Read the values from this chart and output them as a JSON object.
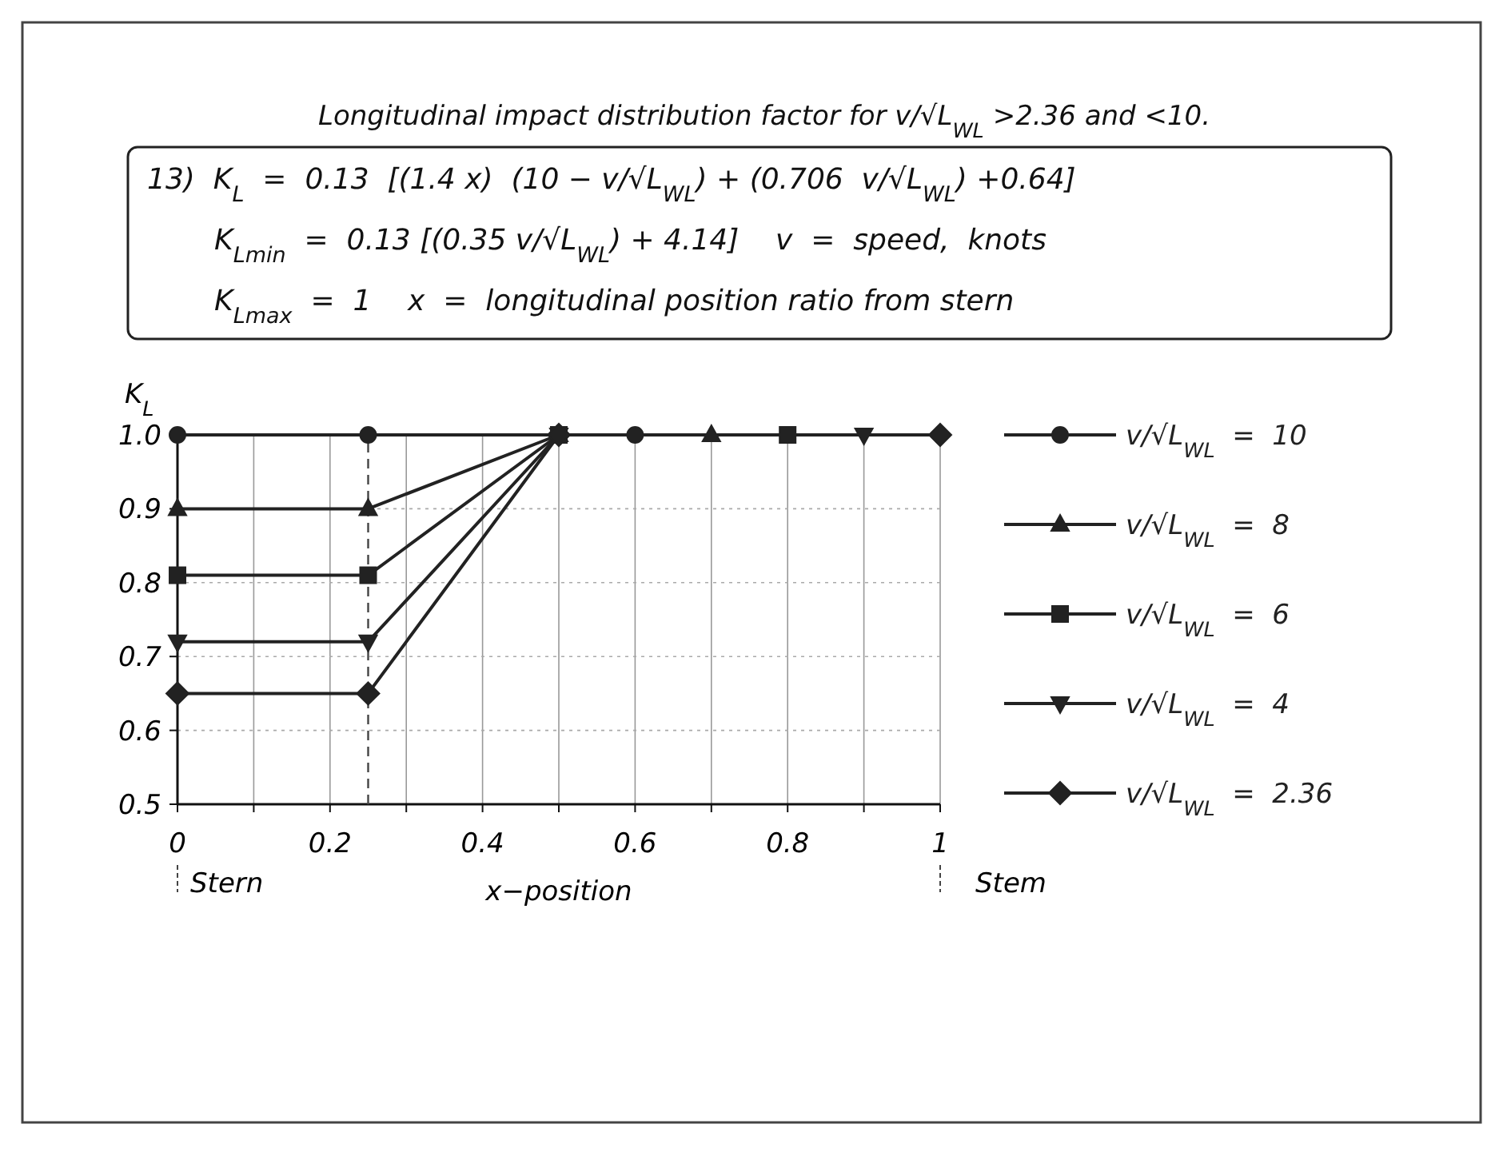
{
  "chart_data": {
    "type": "line",
    "title": "Longitudinal impact distribution factor for v/√L$_{WL}$ >2.36 and <10.",
    "annotations": [
      "13)  K$_{L}$  =  0.13  [(1.4 x)  (10 − v/√L$_{WL}$) + (0.706  v/√L$_{WL}$) +0.64]",
      "K$_{Lmin}$  =  0.13 [(0.35 v/√L$_{WL}$) + 4.14]    v  =  speed,  knots",
      "K$_{Lmax}$  =  1    x  =  longitudinal position ratio from stern",
      "Stern",
      "Stem"
    ],
    "xlabel": "x−position",
    "ylabel": "K$_{L}$",
    "xlim": [
      0,
      1
    ],
    "ylim": [
      0.5,
      1.0
    ],
    "xticks": [
      0,
      {
        "value": 0.1,
        "label": null
      },
      0.2,
      {
        "value": 0.3,
        "label": null
      },
      0.4,
      {
        "value": 0.5,
        "label": null
      },
      0.6,
      {
        "value": 0.7,
        "label": null
      },
      0.8,
      {
        "value": 0.9,
        "label": null
      },
      1
    ],
    "yticks": [
      0.5,
      0.6,
      0.7,
      0.8,
      0.9,
      {
        "value": 1,
        "label": "1.0"
      }
    ],
    "grid": true,
    "legend": "right",
    "line_style": "solid",
    "ref_lines": [
      {
        "axis": "x",
        "value": 0.25,
        "label": null,
        "line_style": "dashed",
        "color": "#444444"
      }
    ],
    "series": [
      {
        "name": "v/√L$_{WL}$  =  10",
        "color": "#222222",
        "marker": "circle",
        "x": [
          0,
          0.25,
          0.5,
          0.6
        ],
        "values": [
          1,
          1,
          1,
          1
        ]
      },
      {
        "name": "v/√L$_{WL}$  =  8",
        "color": "#222222",
        "marker": "triangle",
        "x": [
          0,
          0.25,
          0.5,
          0.7
        ],
        "values": [
          0.9,
          0.9,
          1,
          1
        ]
      },
      {
        "name": "v/√L$_{WL}$  =  6",
        "color": "#222222",
        "marker": "square",
        "x": [
          0,
          0.25,
          0.5,
          0.8
        ],
        "values": [
          0.81,
          0.81,
          1,
          1
        ]
      },
      {
        "name": "v/√L$_{WL}$  =  4",
        "color": "#222222",
        "marker": "triangle-down",
        "x": [
          0,
          0.25,
          0.5,
          0.9
        ],
        "values": [
          0.72,
          0.72,
          1,
          1
        ]
      },
      {
        "name": "v/√L$_{WL}$  =  2.36",
        "color": "#222222",
        "marker": "diamond",
        "x": [
          0,
          0.25,
          0.5,
          1
        ],
        "values": [
          0.65,
          0.65,
          1,
          1
        ]
      }
    ]
  }
}
